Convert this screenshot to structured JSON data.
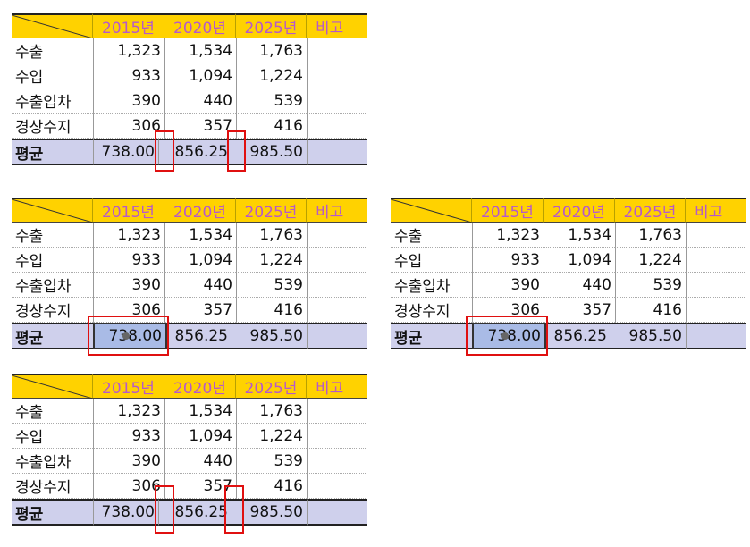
{
  "tables": [
    {
      "header": [
        "2015년",
        "2020년",
        "2025년",
        "비고"
      ],
      "rows": [
        [
          "수출",
          "1,323",
          "1,534",
          "1,763"
        ],
        [
          "수입",
          "933",
          "1,094",
          "1,224"
        ],
        [
          "수출입차",
          "390",
          "440",
          "539"
        ],
        [
          "경상수지",
          "306",
          "357",
          "416"
        ]
      ],
      "average": [
        "평균",
        "738.00",
        "856.25",
        "985.50"
      ]
    },
    {
      "header": [
        "2015년",
        "2020년",
        "2025년",
        "비고"
      ],
      "rows": [
        [
          "수출",
          "1,323",
          "1,534",
          "1,763"
        ],
        [
          "수입",
          "933",
          "1,094",
          "1,224"
        ],
        [
          "수출입차",
          "390",
          "440",
          "539"
        ],
        [
          "경상수지",
          "306",
          "357",
          "416"
        ]
      ],
      "average": [
        "평균",
        "738.00",
        "856.25",
        "985.50"
      ]
    },
    {
      "header": [
        "2015년",
        "2020년",
        "2025년",
        "비고"
      ],
      "rows": [
        [
          "수출",
          "1,323",
          "1,534",
          "1,763"
        ],
        [
          "수입",
          "933",
          "1,094",
          "1,224"
        ],
        [
          "수출입차",
          "390",
          "440",
          "539"
        ],
        [
          "경상수지",
          "306",
          "357",
          "416"
        ]
      ],
      "average": [
        "평균",
        "738.00",
        "856.25",
        "985.50"
      ]
    },
    {
      "header": [
        "2015년",
        "2020년",
        "2025년",
        "비고"
      ],
      "rows": [
        [
          "수출",
          "1,323",
          "1,534",
          "1,763"
        ],
        [
          "수입",
          "933",
          "1,094",
          "1,224"
        ],
        [
          "수출입차",
          "390",
          "440",
          "539"
        ],
        [
          "경상수지",
          "306",
          "357",
          "416"
        ]
      ],
      "average": [
        "평균",
        "738.00",
        "856.25",
        "985.50"
      ]
    }
  ]
}
